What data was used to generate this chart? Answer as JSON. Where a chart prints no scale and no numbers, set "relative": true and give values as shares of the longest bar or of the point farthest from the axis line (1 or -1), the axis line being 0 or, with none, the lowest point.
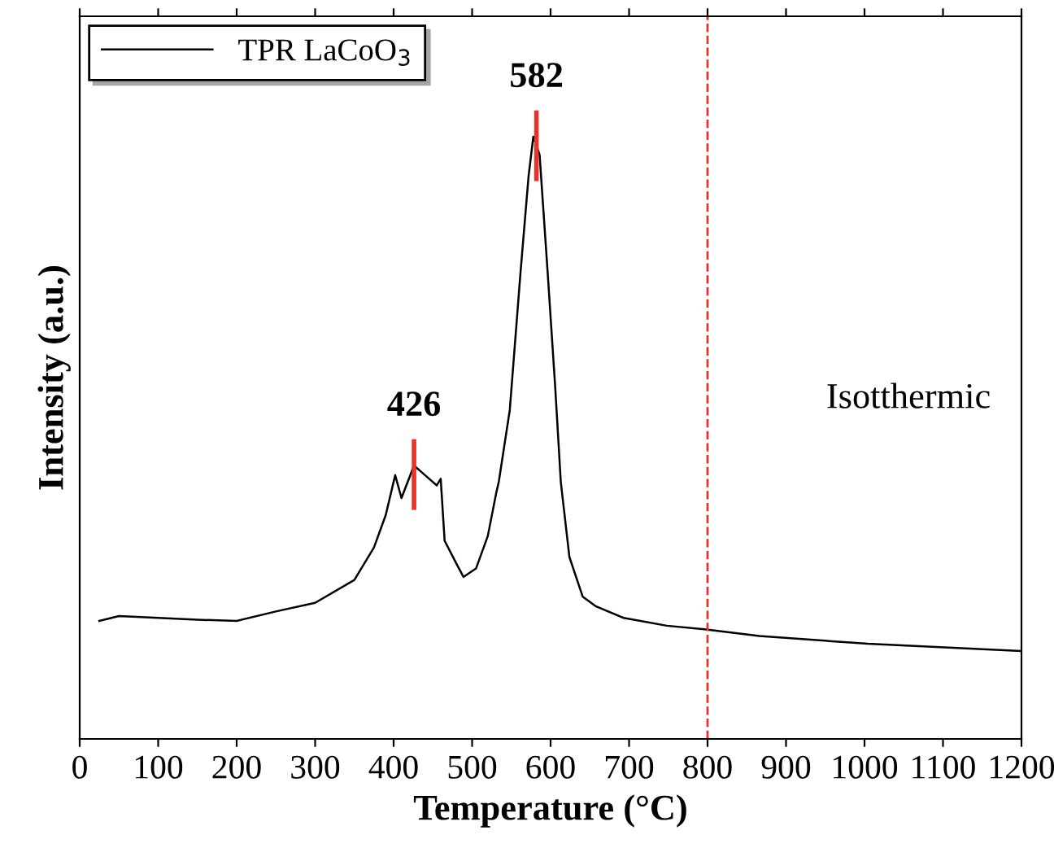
{
  "chart_data": {
    "type": "line",
    "relative": true,
    "xlabel": "Temperature (°C)",
    "ylabel": "Intensity (a.u.)",
    "xlim": [
      0,
      1200
    ],
    "xticks": [
      0,
      100,
      200,
      300,
      400,
      500,
      600,
      700,
      800,
      900,
      1000,
      1100,
      1200
    ],
    "legend": "top left",
    "grid": false,
    "series": [
      {
        "name": "TPR LaCoO$_{3}$",
        "color": "#000000",
        "x": [
          25,
          50,
          100,
          150,
          200,
          251,
          300,
          350,
          375,
          390,
          402,
          410,
          426,
          440,
          455,
          460,
          465,
          480,
          489,
          505,
          520,
          531,
          534,
          548,
          562,
          572,
          578,
          586,
          596,
          606,
          613,
          624,
          641,
          658,
          693,
          748,
          796,
          866,
          1004,
          1200
        ],
        "values": [
          0.196,
          0.204,
          0.201,
          0.198,
          0.196,
          0.212,
          0.226,
          0.264,
          0.318,
          0.372,
          0.438,
          0.4,
          0.454,
          0.438,
          0.421,
          0.432,
          0.329,
          0.291,
          0.269,
          0.283,
          0.337,
          0.41,
          0.427,
          0.546,
          0.78,
          0.935,
          1.0,
          0.97,
          0.78,
          0.582,
          0.427,
          0.302,
          0.236,
          0.22,
          0.201,
          0.188,
          0.182,
          0.171,
          0.158,
          0.146
        ]
      }
    ],
    "ref_lines": [
      {
        "axis": "x",
        "value": 800,
        "color": "#e8322b",
        "line_style": "dashed"
      }
    ],
    "annotations": [
      {
        "text": "426",
        "x": 426,
        "y": 0.454
      },
      {
        "text": "582",
        "x": 582,
        "y": 1.0
      },
      "Isotthermic"
    ]
  }
}
